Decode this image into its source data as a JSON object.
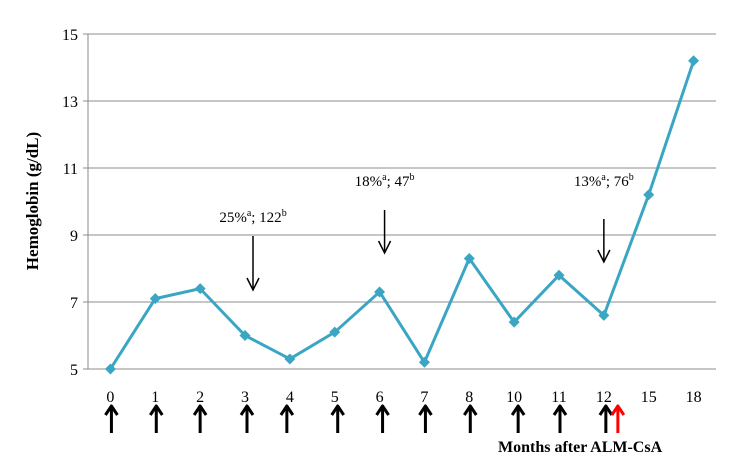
{
  "chart_data": {
    "type": "line",
    "title": "",
    "xlabel": "Months after ALM-CsA",
    "ylabel": "Hemoglobin (g/dL)",
    "ylim": [
      5,
      15
    ],
    "yticks": [
      "5",
      "7",
      "9",
      "11",
      "13",
      "15"
    ],
    "grid": "horizontal",
    "categories": [
      "0",
      "1",
      "2",
      "3",
      "4",
      "5",
      "6",
      "7",
      "8",
      "10",
      "11",
      "12",
      "15",
      "18"
    ],
    "series": [
      {
        "values": [
          5.0,
          7.1,
          7.4,
          6.0,
          5.3,
          6.1,
          7.3,
          5.2,
          8.3,
          6.4,
          7.8,
          6.6,
          10.2,
          14.2
        ],
        "color": "#3aa6c4"
      }
    ],
    "annotations": [
      {
        "category": "3",
        "text": "25%",
        "sup1": "a",
        "mid": "; 122",
        "sup2": "b"
      },
      {
        "category": "6",
        "text": "18%",
        "sup1": "a",
        "mid": "; 47",
        "sup2": "b"
      },
      {
        "category": "12",
        "text": "13%",
        "sup1": "a",
        "mid": "; 76",
        "sup2": "b"
      }
    ],
    "dose_arrows": {
      "black_at": [
        "0",
        "1",
        "2",
        "3",
        "4",
        "5",
        "6",
        "7",
        "8",
        "10",
        "11",
        "12"
      ],
      "red_at": [
        "12"
      ],
      "black_color": "#000000",
      "red_color": "#ff0000"
    }
  }
}
